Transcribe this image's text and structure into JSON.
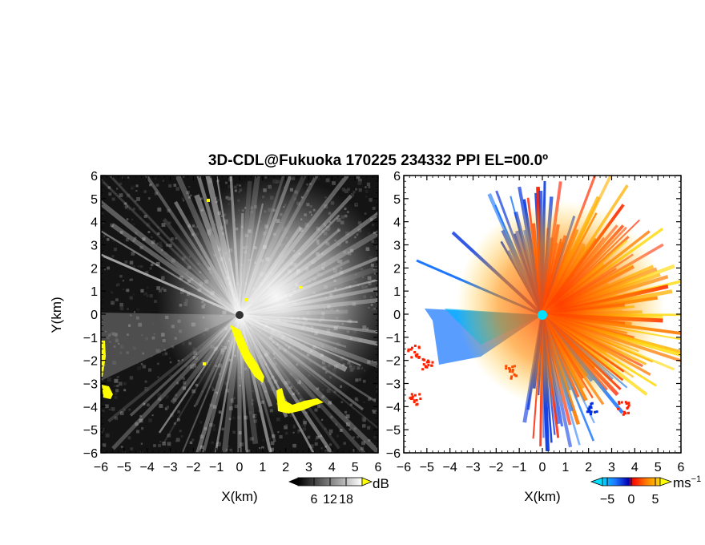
{
  "chart_data": [
    {
      "type": "heatmap",
      "title": "3D-CDL@Fukuoka 170225 234332 PPI EL=00.0º",
      "panel": "signal-to-noise",
      "xlabel": "X(km)",
      "ylabel": "Y(km)",
      "xlim": [
        -6,
        6
      ],
      "ylim": [
        -6,
        6
      ],
      "x_ticks": [
        "−6",
        "−5",
        "−4",
        "−3",
        "−2",
        "−1",
        "0",
        "1",
        "2",
        "3",
        "4",
        "5",
        "6"
      ],
      "y_ticks": [
        "6",
        "5",
        "4",
        "3",
        "2",
        "1",
        "0",
        "−1",
        "−2",
        "−3",
        "−4",
        "−5",
        "−6"
      ],
      "colorbar": {
        "label": "dB",
        "ticks": [
          "6",
          "12",
          "18"
        ],
        "tick_values": [
          6,
          12,
          18
        ],
        "range": [
          0,
          24
        ],
        "colormap": "grayscale",
        "overflow_color": "#ffff00"
      },
      "colors": {
        "background": "#000000",
        "echo": "#ffffff",
        "highlight": "#ffff00"
      }
    },
    {
      "type": "heatmap",
      "panel": "doppler-velocity",
      "xlabel": "X(km)",
      "ylabel": "Y(km)",
      "xlim": [
        -6,
        6
      ],
      "ylim": [
        -6,
        6
      ],
      "x_ticks": [
        "−6",
        "−5",
        "−4",
        "−3",
        "−2",
        "−1",
        "0",
        "1",
        "2",
        "3",
        "4",
        "5",
        "6"
      ],
      "y_ticks": [
        "6",
        "5",
        "4",
        "3",
        "2",
        "1",
        "0",
        "−1",
        "−2",
        "−3",
        "−4",
        "−5",
        "−6"
      ],
      "colorbar": {
        "label": "ms",
        "label_exponent": "−1",
        "ticks": [
          "−5",
          "0",
          "5"
        ],
        "tick_values": [
          -5,
          0,
          5
        ],
        "range": [
          -6,
          6
        ],
        "colormap": [
          "#00d8ff",
          "#1e78ff",
          "#0000b4",
          "#ff0000",
          "#ff7800",
          "#ffd800"
        ],
        "under_color": "#00e0ff",
        "over_color": "#ffff00"
      },
      "colors": {
        "background": "#ffffff"
      }
    }
  ]
}
